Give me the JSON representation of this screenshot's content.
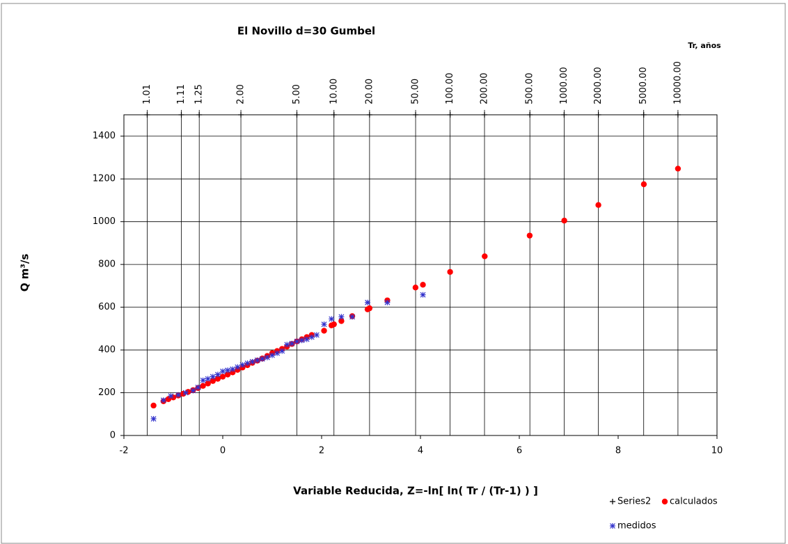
{
  "chart_data": {
    "type": "scatter",
    "title": "El Novillo   d=30 Gumbel",
    "x_label": "Variable Reducida, Z=-ln[ ln( Tr / (Tr-1) ) ]",
    "y_label": "Q m³/s",
    "x2_label": "Tr, años",
    "xlim": [
      -2,
      10
    ],
    "xticks": [
      -2,
      0,
      2,
      4,
      6,
      8,
      10
    ],
    "ylim": [
      0,
      1500
    ],
    "yticks": [
      0,
      200,
      400,
      600,
      800,
      1000,
      1200,
      1400
    ],
    "grid": true,
    "x2ticks": [
      {
        "value": -1.529,
        "label": "1.01"
      },
      {
        "value": -0.838,
        "label": "1.11"
      },
      {
        "value": -0.476,
        "label": "1.25"
      },
      {
        "value": 0.367,
        "label": "2.00"
      },
      {
        "value": 1.5,
        "label": "5.00"
      },
      {
        "value": 2.25,
        "label": "10.00"
      },
      {
        "value": 2.97,
        "label": "20.00"
      },
      {
        "value": 3.902,
        "label": "50.00"
      },
      {
        "value": 4.6,
        "label": "100.00"
      },
      {
        "value": 5.296,
        "label": "200.00"
      },
      {
        "value": 6.214,
        "label": "500.00"
      },
      {
        "value": 6.907,
        "label": "1000.00"
      },
      {
        "value": 7.6,
        "label": "2000.00"
      },
      {
        "value": 8.517,
        "label": "5000.00"
      },
      {
        "value": 9.21,
        "label": "10000.00"
      }
    ],
    "series": [
      {
        "name": "Series2",
        "color": "#000000",
        "marker": "plus",
        "x": [
          -1.529,
          -0.838,
          -0.476,
          0.367,
          1.5,
          2.25,
          2.97,
          3.902,
          4.6,
          5.296,
          6.214,
          6.907,
          7.6,
          8.517,
          9.21
        ],
        "values": [
          1500,
          1500,
          1500,
          1500,
          1500,
          1500,
          1500,
          1500,
          1500,
          1500,
          1500,
          1500,
          1500,
          1500,
          1500
        ]
      },
      {
        "name": "calculados",
        "color": "#ff0000",
        "marker": "circle",
        "x": [
          -1.4,
          -1.2,
          -1.1,
          -1.0,
          -0.9,
          -0.8,
          -0.7,
          -0.6,
          -0.5,
          -0.4,
          -0.3,
          -0.2,
          -0.1,
          0,
          0.1,
          0.2,
          0.3,
          0.4,
          0.5,
          0.6,
          0.7,
          0.8,
          0.9,
          1.0,
          1.1,
          1.2,
          1.3,
          1.4,
          1.5,
          1.6,
          1.7,
          1.8,
          2.05,
          2.2,
          2.25,
          2.4,
          2.62,
          2.93,
          2.97,
          3.33,
          3.9,
          4.05,
          4.6,
          5.3,
          6.21,
          6.91,
          7.6,
          8.52,
          9.21
        ],
        "values": [
          140,
          160,
          170,
          178,
          187,
          195,
          204,
          212,
          222,
          232,
          243,
          255,
          265,
          275,
          285,
          295,
          307,
          318,
          329,
          340,
          350,
          360,
          372,
          385,
          395,
          405,
          416,
          428,
          440,
          450,
          460,
          470,
          490,
          515,
          520,
          535,
          558,
          590,
          595,
          632,
          692,
          705,
          765,
          838,
          935,
          1005,
          1078,
          1175,
          1248
        ]
      },
      {
        "name": "medidos",
        "color": "#3333cc",
        "marker": "asterisk",
        "x": [
          -1.4,
          -1.2,
          -1.05,
          -0.9,
          -0.75,
          -0.6,
          -0.5,
          -0.4,
          -0.3,
          -0.2,
          -0.1,
          0,
          0.1,
          0.2,
          0.3,
          0.4,
          0.5,
          0.6,
          0.7,
          0.8,
          0.9,
          1.0,
          1.1,
          1.2,
          1.3,
          1.4,
          1.5,
          1.6,
          1.7,
          1.8,
          1.9,
          2.05,
          2.2,
          2.4,
          2.62,
          2.93,
          3.33,
          4.05
        ],
        "values": [
          78,
          165,
          185,
          190,
          200,
          210,
          225,
          258,
          265,
          275,
          285,
          300,
          305,
          310,
          320,
          330,
          338,
          345,
          352,
          358,
          365,
          375,
          385,
          395,
          425,
          430,
          440,
          445,
          450,
          460,
          470,
          520,
          545,
          555,
          555,
          622,
          622,
          658
        ]
      }
    ]
  }
}
